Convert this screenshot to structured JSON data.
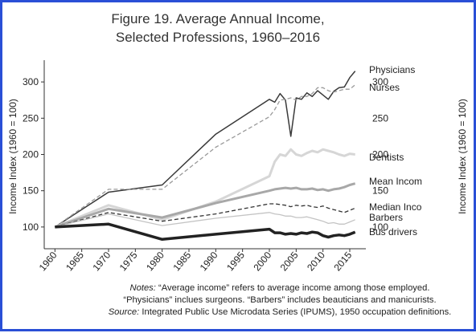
{
  "chart_data": {
    "type": "line",
    "title": [
      "Figure 19. Average Annual Income,",
      "Selected Professions, 1960–2016"
    ],
    "y_label": "Income Index (1960 = 100)",
    "y2_label": "Income Index (1960 = 100)",
    "x": [
      1960,
      1970,
      1980,
      1990,
      2000,
      2001,
      2002,
      2003,
      2004,
      2005,
      2006,
      2007,
      2008,
      2009,
      2010,
      2011,
      2012,
      2013,
      2014,
      2015,
      2016
    ],
    "xlim": [
      1958,
      2018
    ],
    "xticks": [
      1960,
      1965,
      1970,
      1975,
      1980,
      1985,
      1990,
      1995,
      2000,
      2005,
      2010,
      2015
    ],
    "ylim": [
      70,
      330
    ],
    "yticks": [
      100,
      150,
      200,
      250,
      300
    ],
    "y2lim": [
      70,
      330
    ],
    "y2ticks": [
      100,
      150,
      200,
      250,
      300
    ],
    "grid": false,
    "series": [
      {
        "name": "Physicians",
        "color": "#3a3a3a",
        "width": 1.5,
        "dashed": false,
        "values": [
          100,
          148,
          158,
          228,
          276,
          272,
          284,
          275,
          225,
          278,
          276,
          285,
          280,
          288,
          282,
          276,
          287,
          292,
          293,
          306,
          315
        ]
      },
      {
        "name": "Nurses",
        "color": "#9a9a9a",
        "width": 1.3,
        "dashed": true,
        "values": [
          100,
          152,
          152,
          210,
          252,
          262,
          275,
          276,
          278,
          275,
          280,
          280,
          284,
          292,
          292,
          288,
          286,
          288,
          290,
          290,
          296
        ]
      },
      {
        "name": "Dentists",
        "color": "#d6d6d6",
        "width": 3,
        "dashed": false,
        "values": [
          100,
          130,
          110,
          135,
          170,
          190,
          200,
          198,
          207,
          200,
          198,
          202,
          205,
          203,
          207,
          205,
          203,
          200,
          198,
          201,
          200
        ]
      },
      {
        "name": "Mean Incom",
        "color": "#a8a8a8",
        "width": 3,
        "dashed": false,
        "values": [
          100,
          125,
          113,
          133,
          150,
          152,
          153,
          154,
          153,
          154,
          152,
          152,
          153,
          151,
          152,
          150,
          152,
          153,
          155,
          158,
          160
        ]
      },
      {
        "name": "Median Inco",
        "color": "#333333",
        "width": 1.3,
        "dashed": true,
        "values": [
          100,
          120,
          108,
          118,
          132,
          132,
          131,
          130,
          128,
          130,
          129,
          130,
          128,
          127,
          129,
          126,
          124,
          122,
          120,
          123,
          126
        ]
      },
      {
        "name": "Barbers",
        "color": "#c4c4c4",
        "width": 1.3,
        "dashed": false,
        "values": [
          100,
          118,
          102,
          112,
          120,
          118,
          117,
          115,
          115,
          113,
          113,
          114,
          112,
          110,
          108,
          105,
          106,
          104,
          104,
          107,
          110
        ]
      },
      {
        "name": "Bus drivers",
        "color": "#222222",
        "width": 3.5,
        "dashed": false,
        "values": [
          100,
          104,
          83,
          90,
          97,
          92,
          92,
          90,
          91,
          90,
          92,
          91,
          93,
          92,
          88,
          86,
          88,
          89,
          88,
          90,
          93
        ]
      }
    ],
    "notes": [
      {
        "lead": "Notes:",
        "text": "“Average income” refers to average income among those employed."
      },
      {
        "text": "“Physicians” inclues surgeons. “Barbers” includes beauticians and manicurists."
      },
      {
        "lead": "Source:",
        "text": "Integrated Public Use Microdata Series (IPUMS), 1950 occupation definitions."
      }
    ]
  }
}
